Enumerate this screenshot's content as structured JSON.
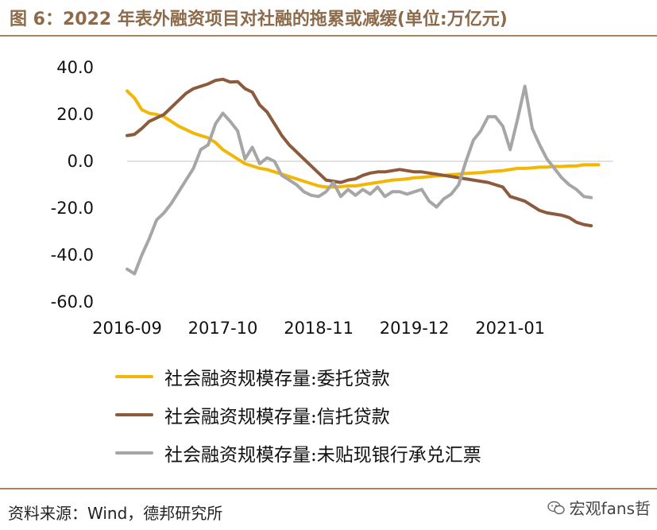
{
  "title": "图 6：2022 年表外融资项目对社融的拖累或减缓(单位:万亿元)",
  "source": "资料来源：Wind，德邦研究所",
  "watermark": "宏观fans哲",
  "colors": {
    "accent": "#a9835f",
    "title": "#8c6a4a",
    "zero_line": "#d9d9d9"
  },
  "chart_data": {
    "type": "line",
    "x_tick_labels": [
      "2016-09",
      "2017-10",
      "2018-11",
      "2019-12",
      "2021-01"
    ],
    "x_tick_positions": [
      0,
      13,
      26,
      39,
      52
    ],
    "x_range": [
      0,
      66
    ],
    "ylim": [
      -60,
      40
    ],
    "y_ticks": [
      40,
      20,
      0,
      -20,
      -40,
      -60
    ],
    "y_tick_labels": [
      "40.0",
      "20.0",
      "0.0",
      "-20.0",
      "-40.0",
      "-60.0"
    ],
    "zero_line": true,
    "grid": false,
    "legend_position": "bottom",
    "series": [
      {
        "name": "社会融资规模存量:委托贷款",
        "color": "#f2b705",
        "values": [
          30,
          27,
          22,
          20.5,
          20,
          19,
          17,
          15,
          13.5,
          12,
          11,
          10,
          8,
          5,
          3,
          1,
          -1,
          -2,
          -3,
          -3.5,
          -4.5,
          -5.5,
          -6.5,
          -7.5,
          -8.5,
          -9.5,
          -10.5,
          -11,
          -11,
          -10.8,
          -10.5,
          -10.5,
          -10,
          -9.5,
          -9,
          -8.5,
          -8,
          -7.8,
          -7.5,
          -7,
          -6.8,
          -6.5,
          -6.2,
          -6,
          -5.7,
          -5.5,
          -5.2,
          -5,
          -4.8,
          -4.5,
          -4.2,
          -4,
          -3.5,
          -3,
          -3,
          -2.8,
          -2.5,
          -2.5,
          -2.2,
          -2.2,
          -2,
          -2,
          -1.5,
          -1.5,
          -1.5
        ]
      },
      {
        "name": "社会融资规模存量:信托贷款",
        "color": "#8c5a3c",
        "values": [
          11,
          11.5,
          14,
          17,
          18.5,
          20,
          23,
          26,
          29,
          31,
          32,
          33,
          34.5,
          35,
          33.8,
          34,
          31,
          29.5,
          24,
          21,
          16,
          11,
          7,
          4,
          1,
          -2,
          -5,
          -8,
          -8.5,
          -9,
          -8,
          -7.5,
          -6,
          -5,
          -4.5,
          -4.5,
          -4,
          -3.5,
          -4,
          -4.5,
          -4.5,
          -5,
          -5.5,
          -6,
          -6.5,
          -7,
          -7.5,
          -8,
          -8.5,
          -9,
          -10,
          -11,
          -15,
          -16,
          -17,
          -19,
          -21,
          -22,
          -22.5,
          -23,
          -24,
          -26,
          -27,
          -27.5
        ]
      },
      {
        "name": "社会融资规模存量:未贴现银行承兑汇票",
        "color": "#a6a6a6",
        "values": [
          -46,
          -48,
          -40,
          -33,
          -25,
          -22,
          -18,
          -13,
          -8,
          -3,
          5,
          7,
          16,
          20.5,
          17,
          13,
          1,
          6,
          -1,
          1.5,
          0,
          -6,
          -8,
          -10,
          -13,
          -14.5,
          -15,
          -13,
          -9,
          -15,
          -12,
          -14.5,
          -12,
          -14,
          -11,
          -15,
          -13,
          -13,
          -14,
          -13,
          -12,
          -17,
          -19.5,
          -16,
          -14,
          -10,
          0,
          9,
          13,
          19,
          19,
          15,
          5,
          18,
          32,
          14,
          7,
          1,
          -3,
          -7,
          -10,
          -12,
          -15,
          -15.5
        ]
      }
    ]
  }
}
